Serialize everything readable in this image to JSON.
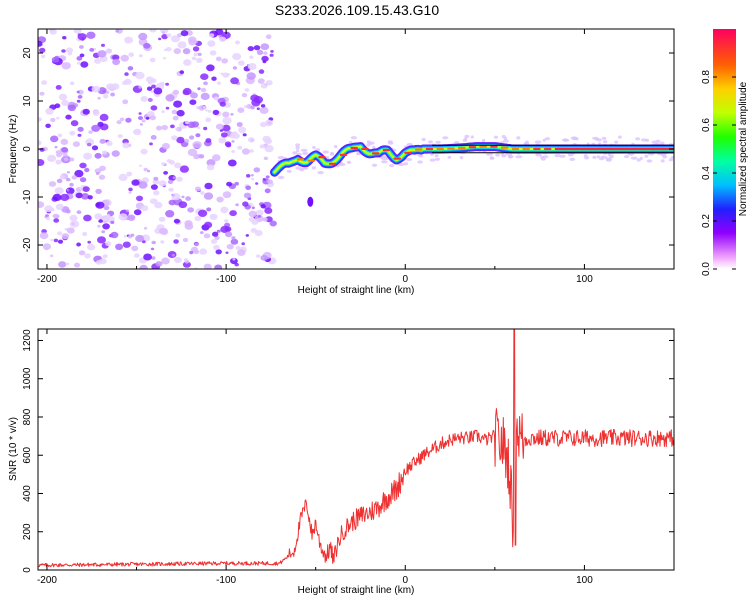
{
  "chart_data": [
    {
      "type": "heatmap",
      "title": "S233.2026.109.15.43.G10",
      "xlabel": "Height of straight line (km)",
      "ylabel": "Frequency (Hz)",
      "xlim": [
        -205,
        150
      ],
      "ylim": [
        -25,
        25
      ],
      "xticks": [
        -200,
        -100,
        0,
        100
      ],
      "yticks": [
        20,
        10,
        0,
        -10,
        -20
      ],
      "colorbar": {
        "label": "Normalized spectral amplitude",
        "range": [
          0,
          1
        ],
        "ticks": [
          "0.0",
          "0.2",
          "0.4",
          "0.6",
          "0.8"
        ],
        "colormap": "spectral-rainbow"
      },
      "noise_region_x": [
        -205,
        -73
      ],
      "frequency_track": {
        "x": [
          -73,
          -65,
          -60,
          -55,
          -50,
          -45,
          -40,
          -35,
          -30,
          -25,
          -20,
          -15,
          -10,
          -5,
          0,
          5,
          10,
          20,
          30,
          40,
          50,
          60,
          70,
          80,
          90,
          100,
          110,
          120,
          130,
          140,
          150
        ],
        "f": [
          -4.5,
          -3.5,
          -1.5,
          -2.5,
          -2.0,
          -3.0,
          -2.0,
          -1.0,
          -0.5,
          1.0,
          -0.5,
          -1.5,
          -0.5,
          -1.5,
          -0.8,
          -1.0,
          0.0,
          0.0,
          0.2,
          0.5,
          0.5,
          0.0,
          0.0,
          0.0,
          0.0,
          0.0,
          0.0,
          0.0,
          0.0,
          0.0,
          0.0
        ]
      },
      "horizontal_lines_hz": [
        0.8,
        -0.8
      ]
    },
    {
      "type": "line",
      "xlabel": "Height of straight line (km)",
      "ylabel": "SNR (10 * v/v)",
      "xlim": [
        -205,
        150
      ],
      "ylim": [
        0,
        1260
      ],
      "xticks": [
        -200,
        -100,
        0,
        100
      ],
      "yticks": [
        0,
        200,
        400,
        600,
        800,
        1000,
        1200
      ],
      "series": [
        {
          "name": "SNR",
          "color": "#ee3030",
          "x": [
            -205,
            -150,
            -100,
            -70,
            -62,
            -58,
            -55,
            -52,
            -50,
            -48,
            -46,
            -44,
            -42,
            -40,
            -38,
            -35,
            -30,
            -25,
            -20,
            -15,
            -10,
            -5,
            0,
            5,
            10,
            15,
            20,
            25,
            30,
            35,
            40,
            45,
            50,
            55,
            58,
            60,
            62,
            64,
            66,
            70,
            80,
            90,
            100,
            110,
            120,
            130,
            140,
            150
          ],
          "y": [
            25,
            30,
            35,
            35,
            100,
            280,
            350,
            180,
            250,
            150,
            100,
            70,
            120,
            50,
            130,
            200,
            250,
            280,
            300,
            330,
            380,
            420,
            520,
            560,
            600,
            630,
            660,
            680,
            690,
            690,
            700,
            680,
            700,
            650,
            550,
            250,
            750,
            700,
            680,
            690,
            690,
            690,
            690,
            690,
            690,
            690,
            690,
            690
          ]
        }
      ],
      "peaks": [
        {
          "x": 61,
          "y": 1260
        },
        {
          "x": 61,
          "y": 130
        }
      ]
    }
  ]
}
